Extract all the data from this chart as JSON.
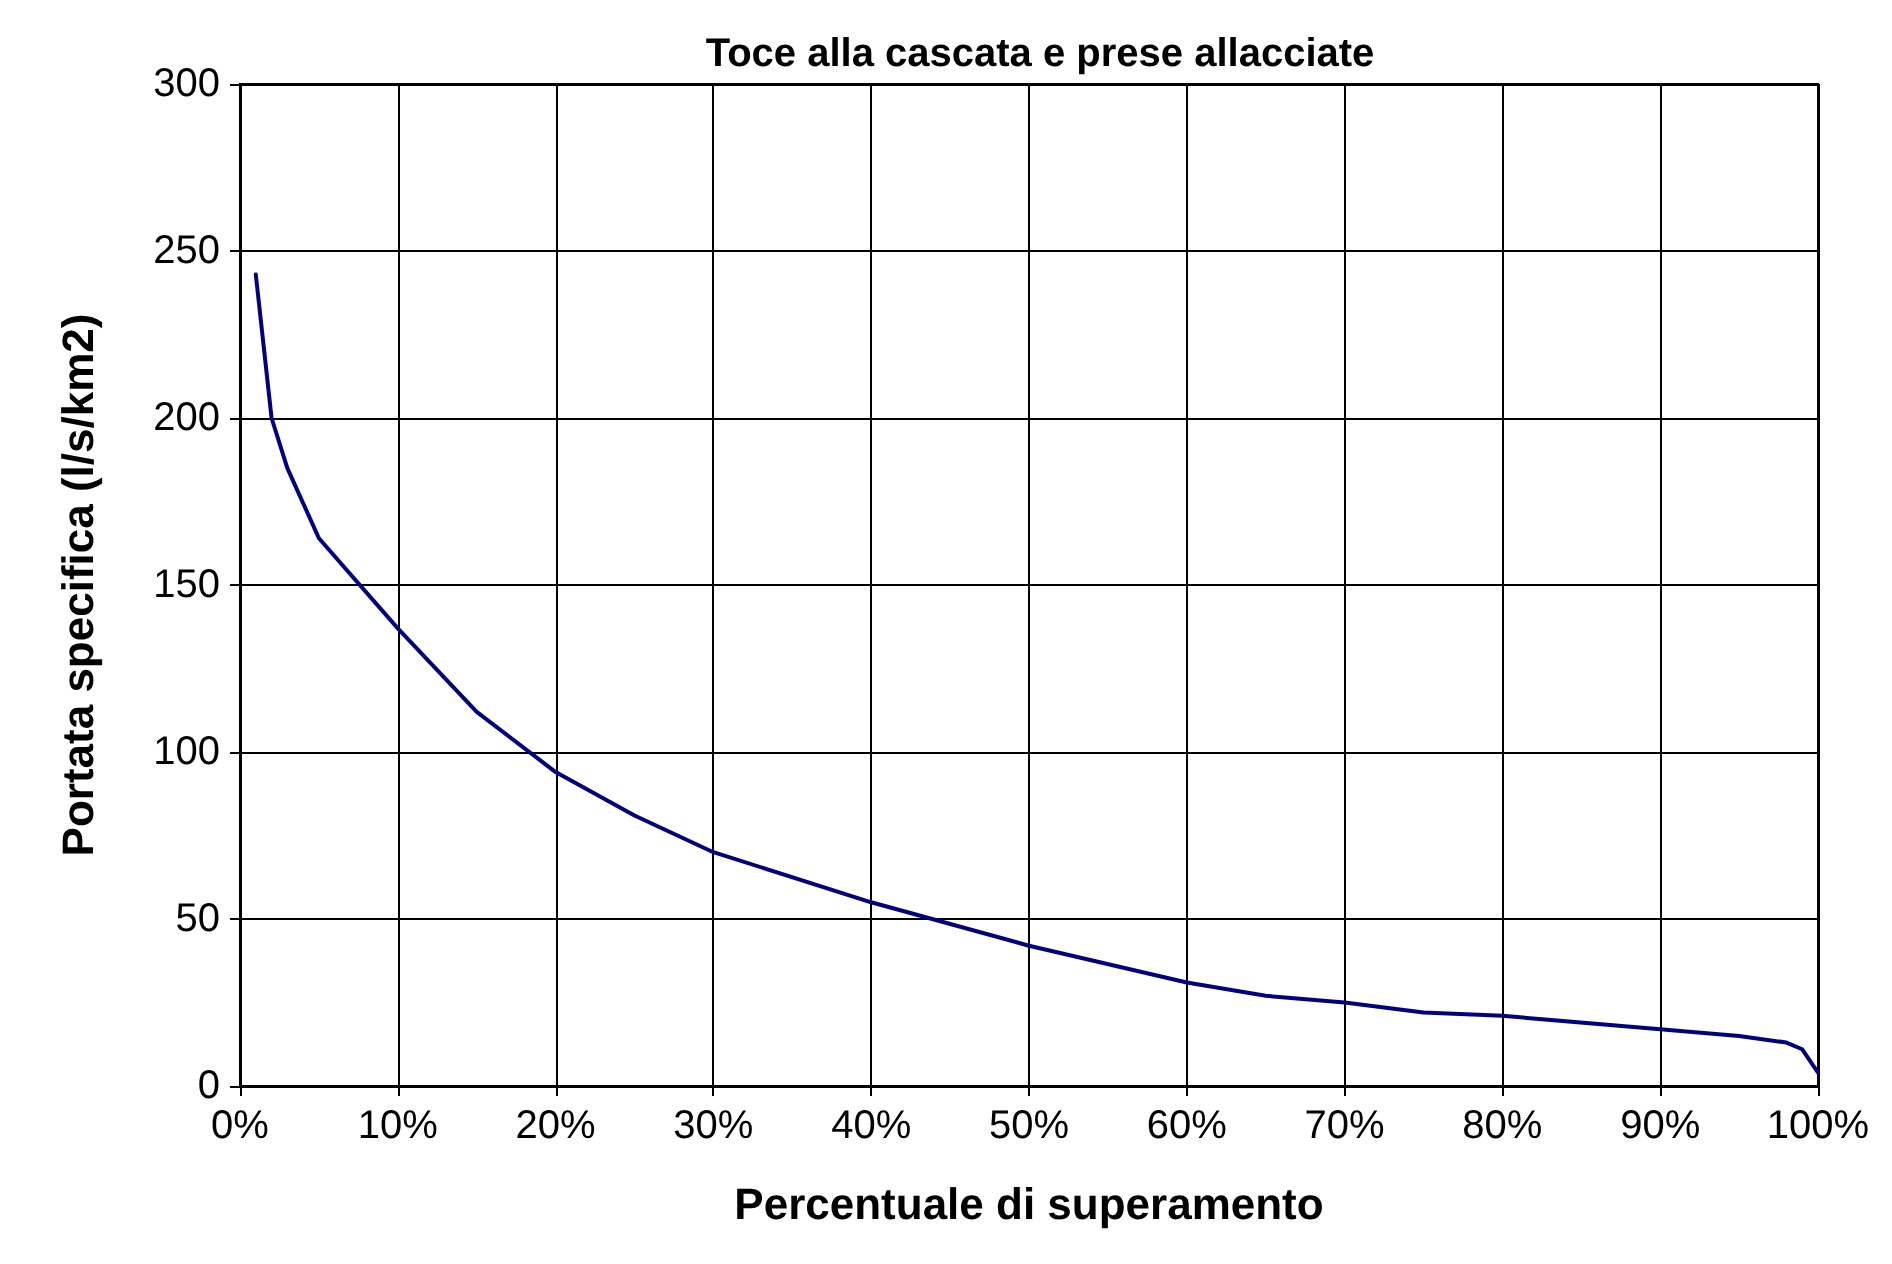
{
  "chart_data": {
    "type": "line",
    "title": "Toce alla cascata e prese allacciate",
    "xlabel": "Percentuale di superamento",
    "ylabel": "Portata specifica (l/s/km2)",
    "x": [
      1,
      2,
      3,
      5,
      10,
      15,
      20,
      25,
      30,
      40,
      50,
      60,
      65,
      70,
      75,
      80,
      90,
      95,
      98,
      99,
      100
    ],
    "series": [
      {
        "color": "#000080",
        "values": [
          243,
          200,
          185,
          164,
          137,
          112,
          94,
          81,
          70,
          55,
          42,
          31,
          27,
          25,
          22,
          21,
          17,
          15,
          13,
          11,
          4
        ]
      }
    ],
    "xlim": [
      0,
      100
    ],
    "ylim": [
      0,
      300
    ],
    "xticks": [
      {
        "value": 0,
        "label": "0%"
      },
      {
        "value": 10,
        "label": "10%"
      },
      {
        "value": 20,
        "label": "20%"
      },
      {
        "value": 30,
        "label": "30%"
      },
      {
        "value": 40,
        "label": "40%"
      },
      {
        "value": 50,
        "label": "50%"
      },
      {
        "value": 60,
        "label": "60%"
      },
      {
        "value": 70,
        "label": "70%"
      },
      {
        "value": 80,
        "label": "80%"
      },
      {
        "value": 90,
        "label": "90%"
      },
      {
        "value": 100,
        "label": "100%"
      }
    ],
    "yticks": [
      0,
      50,
      100,
      150,
      200,
      250,
      300
    ],
    "grid": true,
    "marker": "none",
    "line_style": "solid"
  }
}
